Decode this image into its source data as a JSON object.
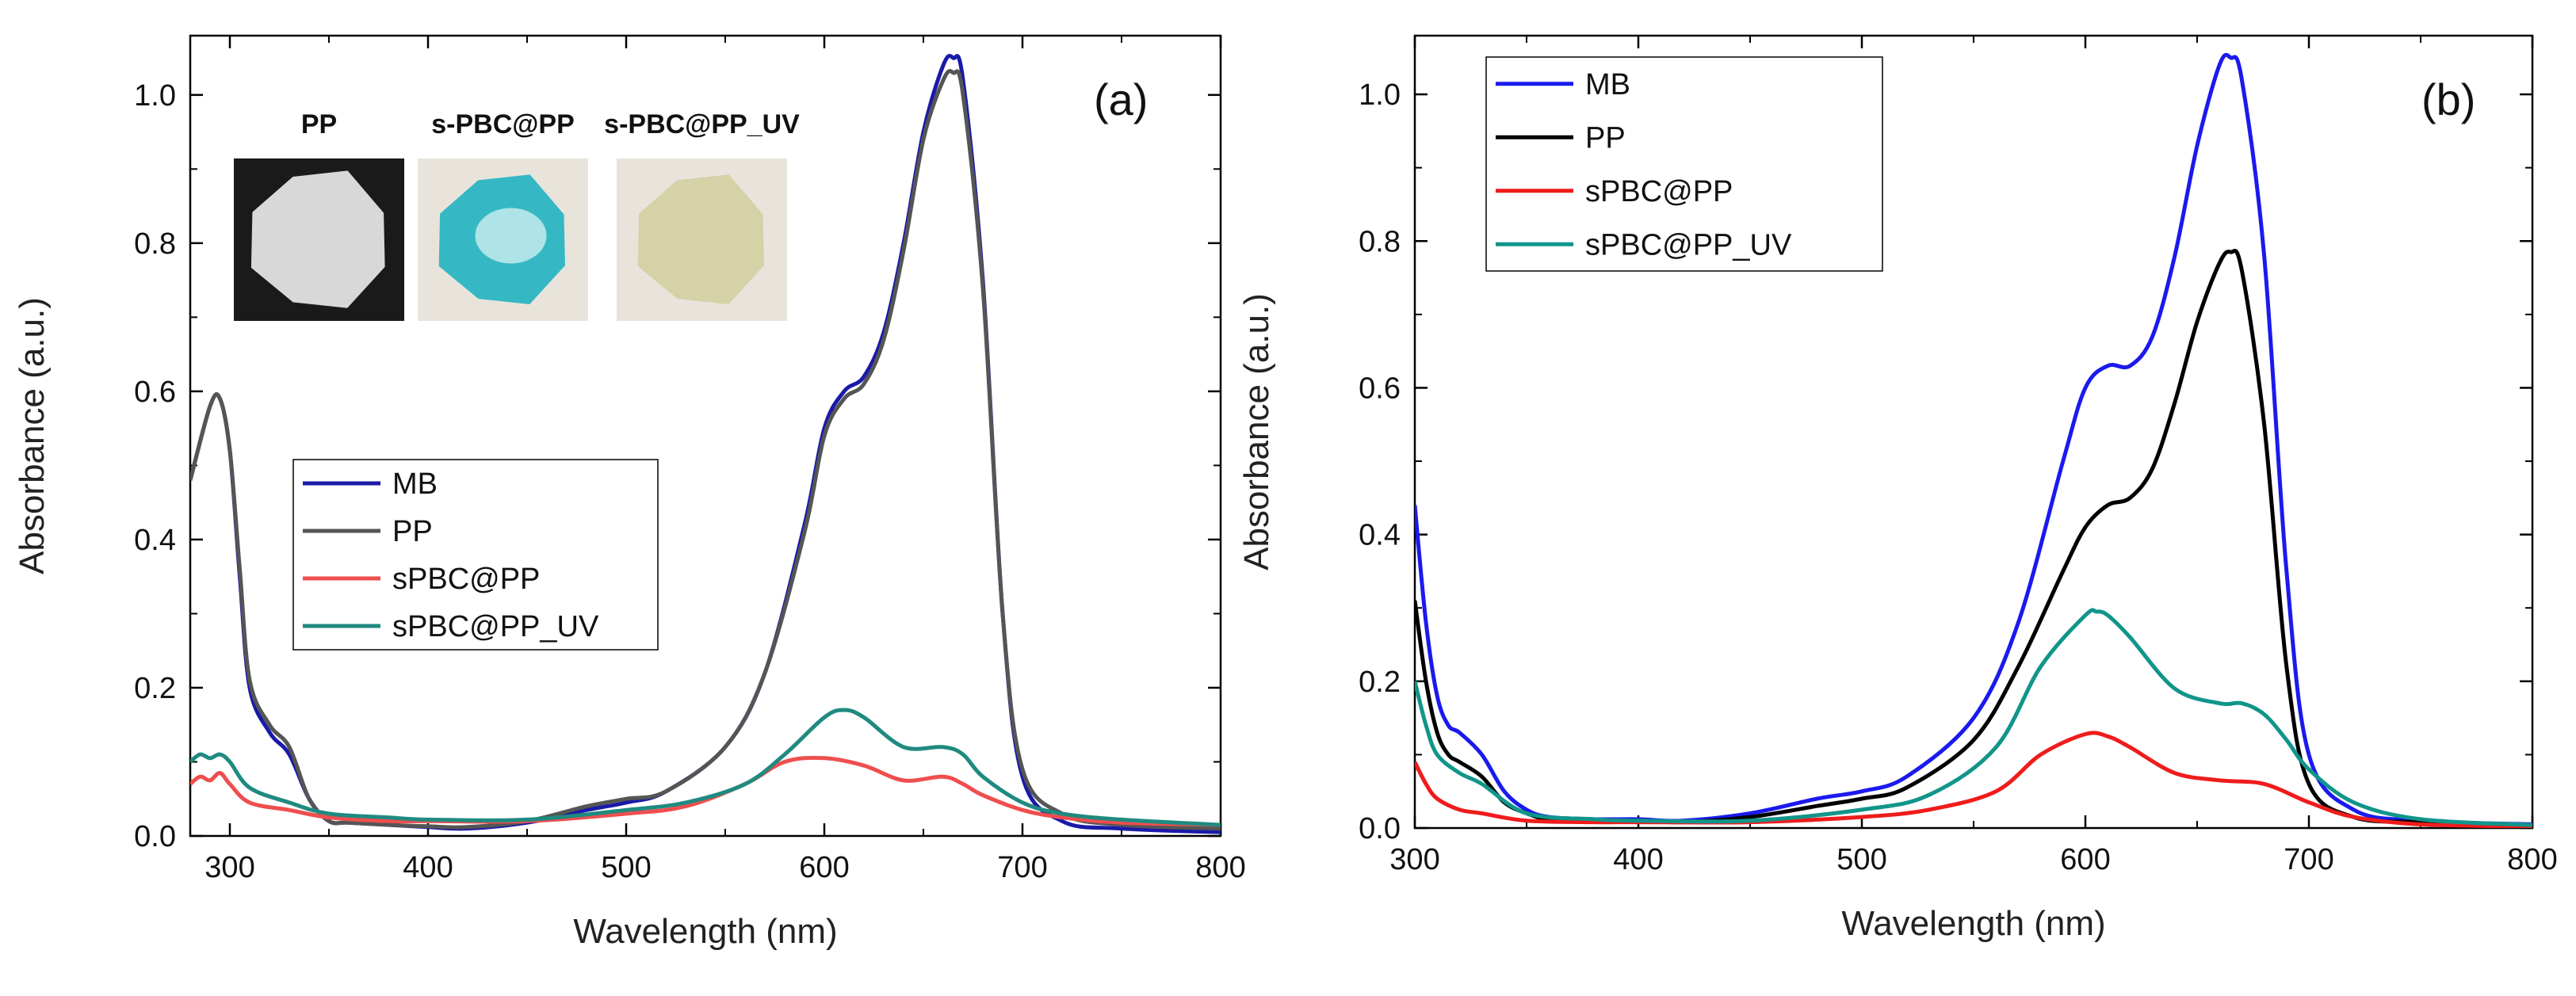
{
  "chart_data": [
    {
      "type": "line",
      "panel_label": "(a)",
      "xlabel": "Wavelength (nm)",
      "ylabel": "Absorbance (a.u.)",
      "xlim": [
        280,
        800
      ],
      "ylim": [
        0,
        1.08
      ],
      "x_ticks": [
        300,
        400,
        500,
        600,
        700,
        800
      ],
      "y_ticks": [
        0.0,
        0.2,
        0.4,
        0.6,
        0.8,
        1.0
      ],
      "x_tick_labels": [
        "300",
        "400",
        "500",
        "600",
        "700",
        "800"
      ],
      "y_tick_labels": [
        "0.0",
        "0.2",
        "0.4",
        "0.6",
        "0.8",
        "1.0"
      ],
      "legend_position": "center-left",
      "inset_labels": [
        "PP",
        "s-PBC@PP",
        "s-PBC@PP_UV"
      ],
      "inset_colors": [
        "#d8d8d8",
        "#35b8c4",
        "#d4d2a6"
      ],
      "series": [
        {
          "name": "MB",
          "color": "#1a1aa8",
          "x": [
            280,
            290,
            295,
            300,
            305,
            310,
            320,
            330,
            340,
            350,
            360,
            380,
            400,
            420,
            450,
            480,
            500,
            520,
            550,
            570,
            590,
            600,
            610,
            620,
            630,
            640,
            650,
            660,
            665,
            670,
            680,
            690,
            700,
            720,
            750,
            800
          ],
          "y": [
            0.48,
            0.58,
            0.59,
            0.52,
            0.35,
            0.2,
            0.14,
            0.11,
            0.05,
            0.02,
            0.018,
            0.015,
            0.012,
            0.01,
            0.018,
            0.035,
            0.045,
            0.06,
            0.12,
            0.22,
            0.42,
            0.55,
            0.6,
            0.62,
            0.68,
            0.8,
            0.95,
            1.04,
            1.05,
            1.02,
            0.75,
            0.3,
            0.08,
            0.02,
            0.01,
            0.005
          ]
        },
        {
          "name": "PP",
          "color": "#555555",
          "x": [
            280,
            290,
            295,
            300,
            305,
            310,
            320,
            330,
            340,
            350,
            360,
            380,
            400,
            420,
            450,
            480,
            500,
            520,
            550,
            570,
            590,
            600,
            610,
            620,
            630,
            640,
            650,
            660,
            665,
            670,
            680,
            690,
            700,
            720,
            750,
            800
          ],
          "y": [
            0.48,
            0.58,
            0.59,
            0.52,
            0.36,
            0.21,
            0.15,
            0.12,
            0.05,
            0.02,
            0.018,
            0.015,
            0.013,
            0.012,
            0.02,
            0.04,
            0.05,
            0.06,
            0.12,
            0.22,
            0.41,
            0.54,
            0.59,
            0.61,
            0.67,
            0.79,
            0.94,
            1.02,
            1.03,
            1.0,
            0.74,
            0.3,
            0.09,
            0.03,
            0.015,
            0.01
          ]
        },
        {
          "name": "sPBC@PP",
          "color": "#ef4e4e",
          "x": [
            280,
            285,
            290,
            295,
            300,
            310,
            330,
            350,
            380,
            400,
            450,
            500,
            530,
            560,
            580,
            600,
            620,
            640,
            660,
            670,
            680,
            700,
            720,
            750,
            800
          ],
          "y": [
            0.07,
            0.08,
            0.075,
            0.085,
            0.07,
            0.045,
            0.035,
            0.025,
            0.02,
            0.02,
            0.02,
            0.03,
            0.04,
            0.07,
            0.1,
            0.105,
            0.095,
            0.075,
            0.08,
            0.07,
            0.055,
            0.035,
            0.025,
            0.018,
            0.015
          ]
        },
        {
          "name": "sPBC@PP_UV",
          "color": "#1f8a80",
          "x": [
            280,
            285,
            290,
            295,
            300,
            310,
            330,
            350,
            380,
            400,
            450,
            500,
            530,
            560,
            580,
            600,
            610,
            620,
            640,
            660,
            670,
            680,
            700,
            720,
            750,
            800
          ],
          "y": [
            0.1,
            0.11,
            0.105,
            0.11,
            0.1,
            0.065,
            0.045,
            0.03,
            0.025,
            0.022,
            0.022,
            0.035,
            0.045,
            0.07,
            0.11,
            0.16,
            0.17,
            0.16,
            0.12,
            0.12,
            0.11,
            0.08,
            0.045,
            0.03,
            0.022,
            0.015
          ]
        }
      ]
    },
    {
      "type": "line",
      "panel_label": "(b)",
      "xlabel": "Wavelength (nm)",
      "ylabel": "Absorbance (a.u.)",
      "xlim": [
        300,
        800
      ],
      "ylim": [
        0,
        1.08
      ],
      "x_ticks": [
        300,
        400,
        500,
        600,
        700,
        800
      ],
      "y_ticks": [
        0.0,
        0.2,
        0.4,
        0.6,
        0.8,
        1.0
      ],
      "x_tick_labels": [
        "300",
        "400",
        "500",
        "600",
        "700",
        "800"
      ],
      "y_tick_labels": [
        "0.0",
        "0.2",
        "0.4",
        "0.6",
        "0.8",
        "1.0"
      ],
      "legend_position": "top-left",
      "series": [
        {
          "name": "MB",
          "color": "#1a1aee",
          "x": [
            300,
            305,
            310,
            315,
            320,
            330,
            340,
            350,
            360,
            380,
            400,
            420,
            450,
            480,
            500,
            520,
            550,
            570,
            590,
            600,
            610,
            620,
            630,
            640,
            650,
            660,
            665,
            670,
            680,
            690,
            700,
            720,
            750,
            800
          ],
          "y": [
            0.44,
            0.28,
            0.18,
            0.14,
            0.13,
            0.1,
            0.05,
            0.025,
            0.015,
            0.012,
            0.012,
            0.01,
            0.02,
            0.04,
            0.05,
            0.07,
            0.15,
            0.28,
            0.5,
            0.6,
            0.63,
            0.63,
            0.67,
            0.78,
            0.93,
            1.04,
            1.05,
            1.02,
            0.78,
            0.35,
            0.1,
            0.025,
            0.01,
            0.005
          ]
        },
        {
          "name": "PP",
          "color": "#000000",
          "x": [
            300,
            305,
            310,
            315,
            320,
            330,
            340,
            350,
            360,
            380,
            400,
            420,
            450,
            480,
            500,
            520,
            550,
            570,
            590,
            600,
            610,
            620,
            630,
            640,
            650,
            660,
            665,
            670,
            680,
            690,
            700,
            720,
            750,
            800
          ],
          "y": [
            0.31,
            0.2,
            0.13,
            0.1,
            0.09,
            0.07,
            0.035,
            0.02,
            0.012,
            0.01,
            0.01,
            0.008,
            0.015,
            0.03,
            0.04,
            0.055,
            0.12,
            0.22,
            0.35,
            0.41,
            0.44,
            0.45,
            0.49,
            0.58,
            0.69,
            0.77,
            0.785,
            0.76,
            0.55,
            0.22,
            0.06,
            0.015,
            0.008,
            0.004
          ]
        },
        {
          "name": "sPBC@PP",
          "color": "#ef1c1c",
          "x": [
            300,
            305,
            310,
            320,
            330,
            350,
            380,
            400,
            450,
            500,
            530,
            560,
            580,
            600,
            610,
            620,
            640,
            660,
            680,
            700,
            720,
            750,
            800
          ],
          "y": [
            0.09,
            0.06,
            0.04,
            0.025,
            0.02,
            0.01,
            0.008,
            0.008,
            0.008,
            0.015,
            0.025,
            0.05,
            0.1,
            0.128,
            0.125,
            0.11,
            0.075,
            0.065,
            0.06,
            0.035,
            0.015,
            0.005,
            0.002
          ]
        },
        {
          "name": "sPBC@PP_UV",
          "color": "#11958a",
          "x": [
            300,
            305,
            310,
            320,
            330,
            350,
            380,
            400,
            450,
            500,
            530,
            560,
            580,
            600,
            605,
            610,
            620,
            640,
            660,
            670,
            680,
            690,
            700,
            720,
            750,
            800
          ],
          "y": [
            0.2,
            0.14,
            0.1,
            0.075,
            0.06,
            0.02,
            0.012,
            0.01,
            0.01,
            0.025,
            0.045,
            0.11,
            0.22,
            0.29,
            0.295,
            0.29,
            0.26,
            0.19,
            0.17,
            0.17,
            0.155,
            0.12,
            0.08,
            0.035,
            0.012,
            0.004
          ]
        }
      ]
    }
  ]
}
